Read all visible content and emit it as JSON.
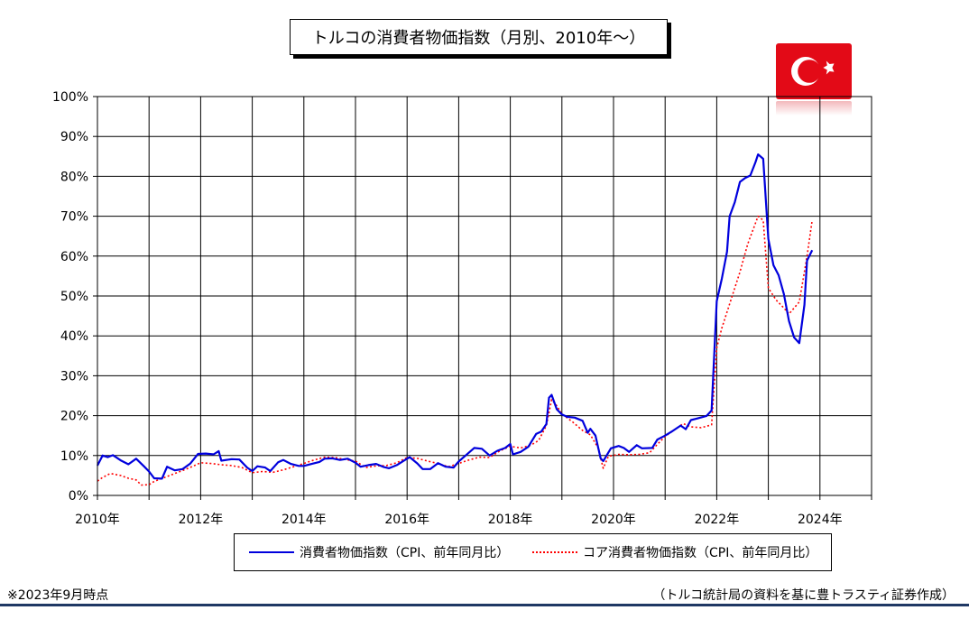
{
  "chart_data": {
    "type": "line",
    "title": "トルコの消費者物価指数（月別、2010年～）",
    "ylim": [
      0,
      100
    ],
    "xlim": [
      2010,
      2025
    ],
    "y_ticks": [
      "0%",
      "10%",
      "20%",
      "30%",
      "40%",
      "50%",
      "60%",
      "70%",
      "80%",
      "90%",
      "100%"
    ],
    "x_ticks": [
      "2010年",
      "2012年",
      "2014年",
      "2016年",
      "2018年",
      "2020年",
      "2022年",
      "2024年"
    ],
    "grid": true,
    "legend_position": "bottom",
    "series": [
      {
        "name": "消費者物価指数（CPI、前年同月比）",
        "color": "#0000dd",
        "style": "solid",
        "points": [
          [
            2010.0,
            7.5
          ],
          [
            2010.1,
            10.0
          ],
          [
            2010.2,
            9.6
          ],
          [
            2010.3,
            10.1
          ],
          [
            2010.45,
            8.8
          ],
          [
            2010.6,
            7.8
          ],
          [
            2010.75,
            9.2
          ],
          [
            2010.9,
            7.3
          ],
          [
            2011.0,
            6.0
          ],
          [
            2011.1,
            4.3
          ],
          [
            2011.25,
            4.2
          ],
          [
            2011.35,
            7.2
          ],
          [
            2011.5,
            6.3
          ],
          [
            2011.65,
            6.6
          ],
          [
            2011.8,
            8.0
          ],
          [
            2011.95,
            10.4
          ],
          [
            2012.1,
            10.5
          ],
          [
            2012.25,
            10.3
          ],
          [
            2012.35,
            11.1
          ],
          [
            2012.4,
            8.7
          ],
          [
            2012.6,
            9.1
          ],
          [
            2012.75,
            9.0
          ],
          [
            2012.9,
            7.0
          ],
          [
            2013.0,
            6.1
          ],
          [
            2013.1,
            7.3
          ],
          [
            2013.25,
            7.0
          ],
          [
            2013.35,
            6.1
          ],
          [
            2013.5,
            8.3
          ],
          [
            2013.6,
            8.9
          ],
          [
            2013.75,
            7.9
          ],
          [
            2013.9,
            7.4
          ],
          [
            2014.0,
            7.4
          ],
          [
            2014.15,
            7.9
          ],
          [
            2014.3,
            8.4
          ],
          [
            2014.4,
            9.2
          ],
          [
            2014.55,
            9.3
          ],
          [
            2014.7,
            8.9
          ],
          [
            2014.85,
            9.2
          ],
          [
            2015.0,
            8.2
          ],
          [
            2015.1,
            7.2
          ],
          [
            2015.25,
            7.6
          ],
          [
            2015.4,
            7.9
          ],
          [
            2015.55,
            7.1
          ],
          [
            2015.65,
            6.8
          ],
          [
            2015.8,
            7.6
          ],
          [
            2015.95,
            8.8
          ],
          [
            2016.05,
            9.6
          ],
          [
            2016.2,
            8.0
          ],
          [
            2016.3,
            6.6
          ],
          [
            2016.45,
            6.6
          ],
          [
            2016.6,
            8.1
          ],
          [
            2016.75,
            7.2
          ],
          [
            2016.9,
            7.0
          ],
          [
            2017.0,
            8.5
          ],
          [
            2017.15,
            10.2
          ],
          [
            2017.3,
            11.9
          ],
          [
            2017.45,
            11.7
          ],
          [
            2017.6,
            10.0
          ],
          [
            2017.75,
            11.2
          ],
          [
            2017.9,
            11.9
          ],
          [
            2018.0,
            12.9
          ],
          [
            2018.05,
            10.3
          ],
          [
            2018.2,
            10.9
          ],
          [
            2018.35,
            12.2
          ],
          [
            2018.5,
            15.4
          ],
          [
            2018.6,
            16.0
          ],
          [
            2018.7,
            17.9
          ],
          [
            2018.75,
            24.5
          ],
          [
            2018.8,
            25.2
          ],
          [
            2018.9,
            21.6
          ],
          [
            2019.0,
            20.3
          ],
          [
            2019.1,
            19.7
          ],
          [
            2019.25,
            19.5
          ],
          [
            2019.4,
            18.7
          ],
          [
            2019.5,
            15.7
          ],
          [
            2019.55,
            16.7
          ],
          [
            2019.65,
            15.0
          ],
          [
            2019.75,
            9.3
          ],
          [
            2019.8,
            8.6
          ],
          [
            2019.95,
            11.8
          ],
          [
            2020.1,
            12.4
          ],
          [
            2020.2,
            11.9
          ],
          [
            2020.3,
            10.9
          ],
          [
            2020.45,
            12.6
          ],
          [
            2020.55,
            11.8
          ],
          [
            2020.75,
            11.9
          ],
          [
            2020.85,
            14.0
          ],
          [
            2021.0,
            15.0
          ],
          [
            2021.15,
            16.2
          ],
          [
            2021.3,
            17.5
          ],
          [
            2021.4,
            16.6
          ],
          [
            2021.5,
            18.9
          ],
          [
            2021.6,
            19.2
          ],
          [
            2021.8,
            19.9
          ],
          [
            2021.9,
            21.3
          ],
          [
            2022.0,
            48.7
          ],
          [
            2022.1,
            54.4
          ],
          [
            2022.2,
            61.1
          ],
          [
            2022.25,
            70.0
          ],
          [
            2022.35,
            73.5
          ],
          [
            2022.45,
            78.6
          ],
          [
            2022.55,
            79.6
          ],
          [
            2022.65,
            80.2
          ],
          [
            2022.75,
            83.5
          ],
          [
            2022.8,
            85.5
          ],
          [
            2022.9,
            84.4
          ],
          [
            2023.0,
            64.3
          ],
          [
            2023.1,
            57.7
          ],
          [
            2023.2,
            55.2
          ],
          [
            2023.3,
            50.5
          ],
          [
            2023.4,
            43.7
          ],
          [
            2023.5,
            39.6
          ],
          [
            2023.6,
            38.2
          ],
          [
            2023.7,
            47.8
          ],
          [
            2023.75,
            58.9
          ],
          [
            2023.85,
            61.5
          ]
        ]
      },
      {
        "name": "コア消費者物価指数（CPI、前年同月比）",
        "color": "#ff0000",
        "style": "dotted",
        "points": [
          [
            2010.0,
            3.6
          ],
          [
            2010.1,
            4.5
          ],
          [
            2010.25,
            5.5
          ],
          [
            2010.45,
            5.0
          ],
          [
            2010.6,
            4.3
          ],
          [
            2010.75,
            3.9
          ],
          [
            2010.85,
            2.6
          ],
          [
            2011.0,
            2.7
          ],
          [
            2011.1,
            3.5
          ],
          [
            2011.3,
            4.5
          ],
          [
            2011.5,
            5.5
          ],
          [
            2011.7,
            6.5
          ],
          [
            2011.85,
            7.3
          ],
          [
            2012.0,
            8.2
          ],
          [
            2012.2,
            8.0
          ],
          [
            2012.4,
            7.7
          ],
          [
            2012.6,
            7.5
          ],
          [
            2012.8,
            7.0
          ],
          [
            2013.0,
            5.7
          ],
          [
            2013.2,
            6.0
          ],
          [
            2013.4,
            5.8
          ],
          [
            2013.6,
            6.4
          ],
          [
            2013.8,
            7.2
          ],
          [
            2014.0,
            8.0
          ],
          [
            2014.2,
            8.9
          ],
          [
            2014.4,
            9.6
          ],
          [
            2014.6,
            9.5
          ],
          [
            2014.8,
            9.0
          ],
          [
            2015.0,
            8.6
          ],
          [
            2015.2,
            7.0
          ],
          [
            2015.4,
            7.4
          ],
          [
            2015.6,
            7.5
          ],
          [
            2015.8,
            8.2
          ],
          [
            2016.0,
            9.5
          ],
          [
            2016.2,
            9.3
          ],
          [
            2016.4,
            8.6
          ],
          [
            2016.6,
            8.0
          ],
          [
            2016.8,
            7.2
          ],
          [
            2017.0,
            8.0
          ],
          [
            2017.2,
            8.9
          ],
          [
            2017.4,
            9.6
          ],
          [
            2017.6,
            9.5
          ],
          [
            2017.8,
            11.2
          ],
          [
            2018.0,
            12.3
          ],
          [
            2018.2,
            11.9
          ],
          [
            2018.4,
            12.6
          ],
          [
            2018.55,
            13.8
          ],
          [
            2018.7,
            17.5
          ],
          [
            2018.8,
            24.0
          ],
          [
            2018.9,
            22.5
          ],
          [
            2019.0,
            20.4
          ],
          [
            2019.2,
            18.5
          ],
          [
            2019.4,
            16.3
          ],
          [
            2019.55,
            15.2
          ],
          [
            2019.7,
            12.0
          ],
          [
            2019.8,
            6.8
          ],
          [
            2019.9,
            9.8
          ],
          [
            2020.1,
            10.3
          ],
          [
            2020.3,
            10.2
          ],
          [
            2020.5,
            10.3
          ],
          [
            2020.7,
            10.7
          ],
          [
            2020.85,
            12.8
          ],
          [
            2021.0,
            14.8
          ],
          [
            2021.2,
            16.6
          ],
          [
            2021.35,
            18.0
          ],
          [
            2021.5,
            17.2
          ],
          [
            2021.7,
            17.0
          ],
          [
            2021.9,
            17.7
          ],
          [
            2022.0,
            37.0
          ],
          [
            2022.1,
            42.0
          ],
          [
            2022.25,
            48.0
          ],
          [
            2022.45,
            56.0
          ],
          [
            2022.6,
            63.0
          ],
          [
            2022.8,
            70.0
          ],
          [
            2022.9,
            69.0
          ],
          [
            2023.0,
            52.0
          ],
          [
            2023.15,
            49.0
          ],
          [
            2023.3,
            47.0
          ],
          [
            2023.4,
            45.5
          ],
          [
            2023.6,
            48.5
          ],
          [
            2023.75,
            60.0
          ],
          [
            2023.85,
            69.0
          ]
        ]
      }
    ]
  },
  "legend": {
    "cpi": "消費者物価指数（CPI、前年同月比）",
    "core": "コア消費者物価指数（CPI、前年同月比）"
  },
  "footer": {
    "note": "※2023年9月時点",
    "source": "（トルコ統計局の資料を基に豊トラスティ証券作成）"
  },
  "flag": {
    "red": "#e30a17",
    "white": "#ffffff"
  }
}
